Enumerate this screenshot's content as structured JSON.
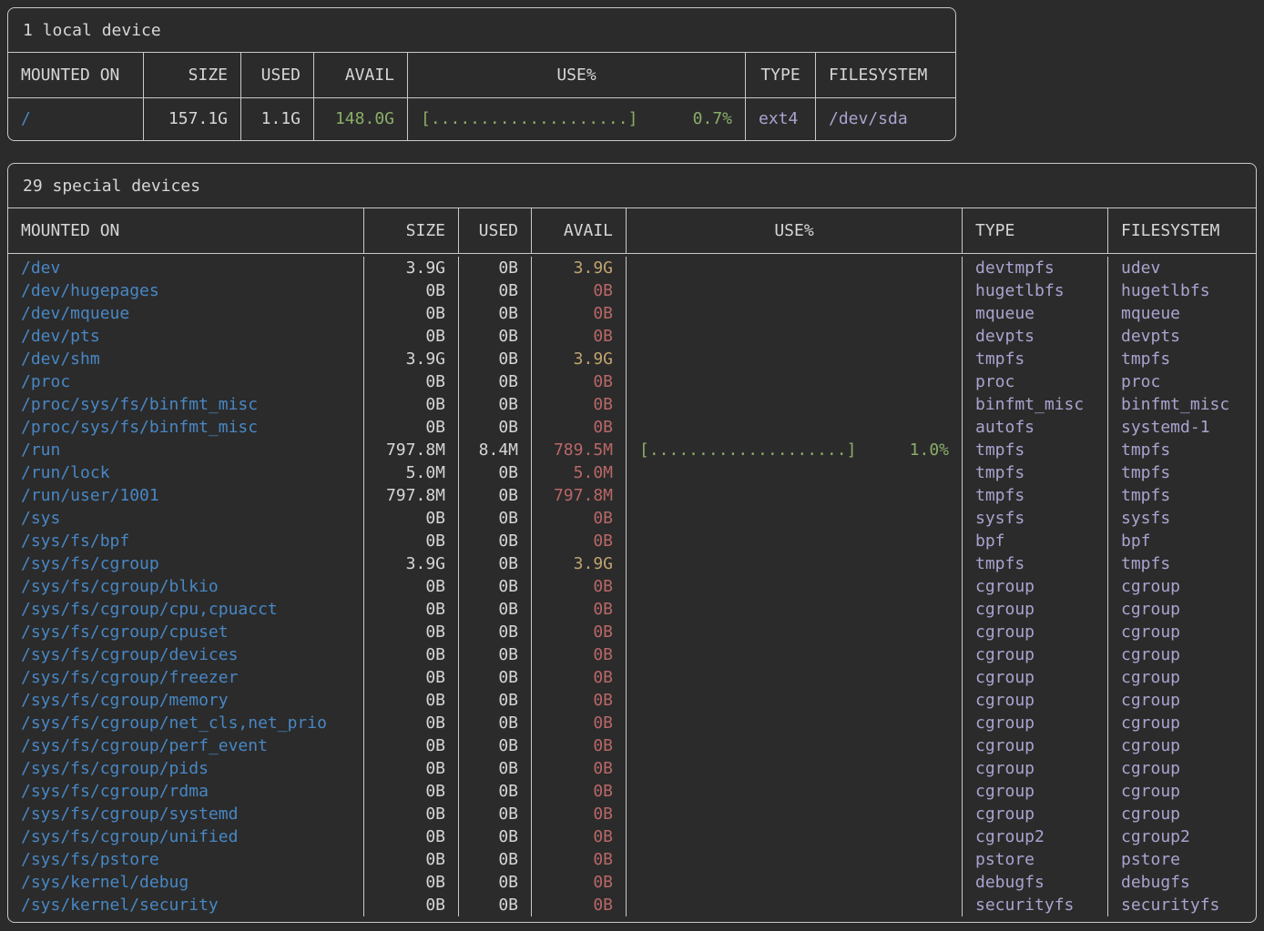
{
  "colors": {
    "bg": "#2b2b2b",
    "border": "#c9c9c9",
    "fg": "#d6d6d6",
    "blue": "#4887c4",
    "green": "#8aae68",
    "yellow": "#c2a470",
    "red": "#b96767",
    "purple": "#a9a4cf"
  },
  "local_table": {
    "title": "1 local device",
    "headers": {
      "mounted": "MOUNTED ON",
      "size": "SIZE",
      "used": "USED",
      "avail": "AVAIL",
      "use": "USE%",
      "type": "TYPE",
      "fs": "FILESYSTEM"
    },
    "rows": [
      {
        "mounted": "/",
        "size": "157.1G",
        "used": "1.1G",
        "avail": "148.0G",
        "avail_class": "green",
        "bar": "[....................]",
        "pct": "0.7%",
        "type": "ext4",
        "fs": "/dev/sda"
      }
    ]
  },
  "special_table": {
    "title": "29 special devices",
    "headers": {
      "mounted": "MOUNTED ON",
      "size": "SIZE",
      "used": "USED",
      "avail": "AVAIL",
      "use": "USE%",
      "type": "TYPE",
      "fs": "FILESYSTEM"
    },
    "rows": [
      {
        "mounted": "/dev",
        "size": "3.9G",
        "used": "0B",
        "avail": "3.9G",
        "avail_class": "yellow",
        "bar": "",
        "pct": "",
        "type": "devtmpfs",
        "fs": "udev"
      },
      {
        "mounted": "/dev/hugepages",
        "size": "0B",
        "used": "0B",
        "avail": "0B",
        "avail_class": "red",
        "bar": "",
        "pct": "",
        "type": "hugetlbfs",
        "fs": "hugetlbfs"
      },
      {
        "mounted": "/dev/mqueue",
        "size": "0B",
        "used": "0B",
        "avail": "0B",
        "avail_class": "red",
        "bar": "",
        "pct": "",
        "type": "mqueue",
        "fs": "mqueue"
      },
      {
        "mounted": "/dev/pts",
        "size": "0B",
        "used": "0B",
        "avail": "0B",
        "avail_class": "red",
        "bar": "",
        "pct": "",
        "type": "devpts",
        "fs": "devpts"
      },
      {
        "mounted": "/dev/shm",
        "size": "3.9G",
        "used": "0B",
        "avail": "3.9G",
        "avail_class": "yellow",
        "bar": "",
        "pct": "",
        "type": "tmpfs",
        "fs": "tmpfs"
      },
      {
        "mounted": "/proc",
        "size": "0B",
        "used": "0B",
        "avail": "0B",
        "avail_class": "red",
        "bar": "",
        "pct": "",
        "type": "proc",
        "fs": "proc"
      },
      {
        "mounted": "/proc/sys/fs/binfmt_misc",
        "size": "0B",
        "used": "0B",
        "avail": "0B",
        "avail_class": "red",
        "bar": "",
        "pct": "",
        "type": "binfmt_misc",
        "fs": "binfmt_misc"
      },
      {
        "mounted": "/proc/sys/fs/binfmt_misc",
        "size": "0B",
        "used": "0B",
        "avail": "0B",
        "avail_class": "red",
        "bar": "",
        "pct": "",
        "type": "autofs",
        "fs": "systemd-1"
      },
      {
        "mounted": "/run",
        "size": "797.8M",
        "used": "8.4M",
        "avail": "789.5M",
        "avail_class": "red",
        "bar": "[....................]",
        "pct": "1.0%",
        "type": "tmpfs",
        "fs": "tmpfs"
      },
      {
        "mounted": "/run/lock",
        "size": "5.0M",
        "used": "0B",
        "avail": "5.0M",
        "avail_class": "red",
        "bar": "",
        "pct": "",
        "type": "tmpfs",
        "fs": "tmpfs"
      },
      {
        "mounted": "/run/user/1001",
        "size": "797.8M",
        "used": "0B",
        "avail": "797.8M",
        "avail_class": "red",
        "bar": "",
        "pct": "",
        "type": "tmpfs",
        "fs": "tmpfs"
      },
      {
        "mounted": "/sys",
        "size": "0B",
        "used": "0B",
        "avail": "0B",
        "avail_class": "red",
        "bar": "",
        "pct": "",
        "type": "sysfs",
        "fs": "sysfs"
      },
      {
        "mounted": "/sys/fs/bpf",
        "size": "0B",
        "used": "0B",
        "avail": "0B",
        "avail_class": "red",
        "bar": "",
        "pct": "",
        "type": "bpf",
        "fs": "bpf"
      },
      {
        "mounted": "/sys/fs/cgroup",
        "size": "3.9G",
        "used": "0B",
        "avail": "3.9G",
        "avail_class": "yellow",
        "bar": "",
        "pct": "",
        "type": "tmpfs",
        "fs": "tmpfs"
      },
      {
        "mounted": "/sys/fs/cgroup/blkio",
        "size": "0B",
        "used": "0B",
        "avail": "0B",
        "avail_class": "red",
        "bar": "",
        "pct": "",
        "type": "cgroup",
        "fs": "cgroup"
      },
      {
        "mounted": "/sys/fs/cgroup/cpu,cpuacct",
        "size": "0B",
        "used": "0B",
        "avail": "0B",
        "avail_class": "red",
        "bar": "",
        "pct": "",
        "type": "cgroup",
        "fs": "cgroup"
      },
      {
        "mounted": "/sys/fs/cgroup/cpuset",
        "size": "0B",
        "used": "0B",
        "avail": "0B",
        "avail_class": "red",
        "bar": "",
        "pct": "",
        "type": "cgroup",
        "fs": "cgroup"
      },
      {
        "mounted": "/sys/fs/cgroup/devices",
        "size": "0B",
        "used": "0B",
        "avail": "0B",
        "avail_class": "red",
        "bar": "",
        "pct": "",
        "type": "cgroup",
        "fs": "cgroup"
      },
      {
        "mounted": "/sys/fs/cgroup/freezer",
        "size": "0B",
        "used": "0B",
        "avail": "0B",
        "avail_class": "red",
        "bar": "",
        "pct": "",
        "type": "cgroup",
        "fs": "cgroup"
      },
      {
        "mounted": "/sys/fs/cgroup/memory",
        "size": "0B",
        "used": "0B",
        "avail": "0B",
        "avail_class": "red",
        "bar": "",
        "pct": "",
        "type": "cgroup",
        "fs": "cgroup"
      },
      {
        "mounted": "/sys/fs/cgroup/net_cls,net_prio",
        "size": "0B",
        "used": "0B",
        "avail": "0B",
        "avail_class": "red",
        "bar": "",
        "pct": "",
        "type": "cgroup",
        "fs": "cgroup"
      },
      {
        "mounted": "/sys/fs/cgroup/perf_event",
        "size": "0B",
        "used": "0B",
        "avail": "0B",
        "avail_class": "red",
        "bar": "",
        "pct": "",
        "type": "cgroup",
        "fs": "cgroup"
      },
      {
        "mounted": "/sys/fs/cgroup/pids",
        "size": "0B",
        "used": "0B",
        "avail": "0B",
        "avail_class": "red",
        "bar": "",
        "pct": "",
        "type": "cgroup",
        "fs": "cgroup"
      },
      {
        "mounted": "/sys/fs/cgroup/rdma",
        "size": "0B",
        "used": "0B",
        "avail": "0B",
        "avail_class": "red",
        "bar": "",
        "pct": "",
        "type": "cgroup",
        "fs": "cgroup"
      },
      {
        "mounted": "/sys/fs/cgroup/systemd",
        "size": "0B",
        "used": "0B",
        "avail": "0B",
        "avail_class": "red",
        "bar": "",
        "pct": "",
        "type": "cgroup",
        "fs": "cgroup"
      },
      {
        "mounted": "/sys/fs/cgroup/unified",
        "size": "0B",
        "used": "0B",
        "avail": "0B",
        "avail_class": "red",
        "bar": "",
        "pct": "",
        "type": "cgroup2",
        "fs": "cgroup2"
      },
      {
        "mounted": "/sys/fs/pstore",
        "size": "0B",
        "used": "0B",
        "avail": "0B",
        "avail_class": "red",
        "bar": "",
        "pct": "",
        "type": "pstore",
        "fs": "pstore"
      },
      {
        "mounted": "/sys/kernel/debug",
        "size": "0B",
        "used": "0B",
        "avail": "0B",
        "avail_class": "red",
        "bar": "",
        "pct": "",
        "type": "debugfs",
        "fs": "debugfs"
      },
      {
        "mounted": "/sys/kernel/security",
        "size": "0B",
        "used": "0B",
        "avail": "0B",
        "avail_class": "red",
        "bar": "",
        "pct": "",
        "type": "securityfs",
        "fs": "securityfs"
      }
    ]
  }
}
